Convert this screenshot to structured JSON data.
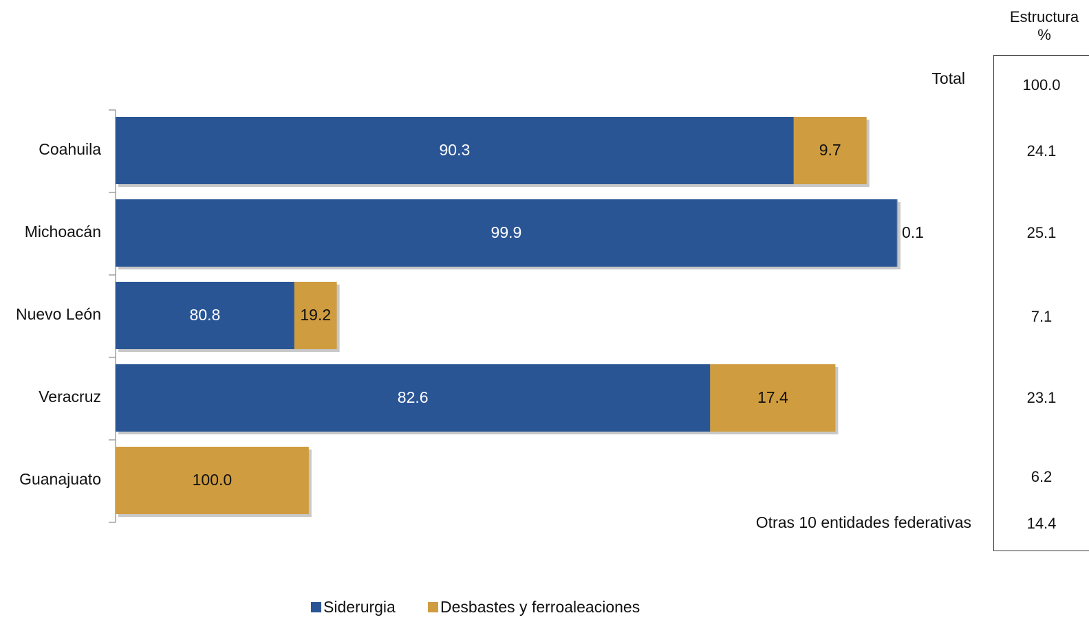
{
  "chart_data": {
    "type": "bar",
    "orientation": "horizontal",
    "stacked": true,
    "categories": [
      "Coahuila",
      "Michoacán",
      "Nuevo León",
      "Veracruz",
      "Guanajuato"
    ],
    "series": [
      {
        "name": "Siderurgia",
        "color": "#2a5595",
        "values": [
          90.3,
          99.9,
          80.8,
          82.6,
          0
        ]
      },
      {
        "name": "Desbastes y ferroaleaciones",
        "color": "#cf9c3f",
        "values": [
          9.7,
          0.1,
          19.2,
          17.4,
          100.0
        ]
      }
    ],
    "data_labels": [
      [
        "90.3",
        "99.9",
        "80.8",
        "82.6",
        ""
      ],
      [
        "9.7",
        "0.1",
        "19.2",
        "17.4",
        "100.0"
      ]
    ],
    "bar_totals_share": [
      24.1,
      25.1,
      7.1,
      23.1,
      6.2
    ],
    "legend_position": "bottom",
    "grid": false
  },
  "side_table": {
    "header_line1": "Estructura",
    "header_line2": "%",
    "total_label": "Total",
    "total_value": "100.0",
    "values": [
      "24.1",
      "25.1",
      "7.1",
      "23.1",
      "6.2"
    ],
    "others_label": "Otras 10 entidades federativas",
    "others_value": "14.4"
  },
  "legend": {
    "items": [
      "Siderurgia",
      "Desbastes y ferroaleaciones"
    ]
  }
}
